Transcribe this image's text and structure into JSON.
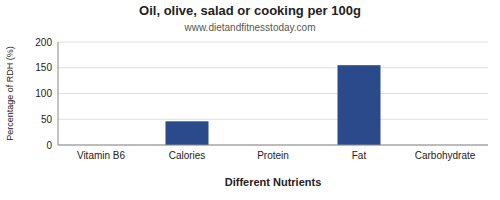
{
  "chart_data": {
    "type": "bar",
    "title": "Oil, olive, salad or cooking per 100g",
    "subtitle": "www.dietandfitnesstoday.com",
    "xlabel": "Different Nutrients",
    "ylabel": "Percentage of RDH (%)",
    "categories": [
      "Vitamin B6",
      "Calories",
      "Protein",
      "Fat",
      "Carbohydrate"
    ],
    "values": [
      0,
      46,
      0,
      155,
      0
    ],
    "color": "#2b4a8b",
    "ylim": [
      0,
      200
    ],
    "yticks": [
      0,
      50,
      100,
      150,
      200
    ],
    "grid": true
  }
}
